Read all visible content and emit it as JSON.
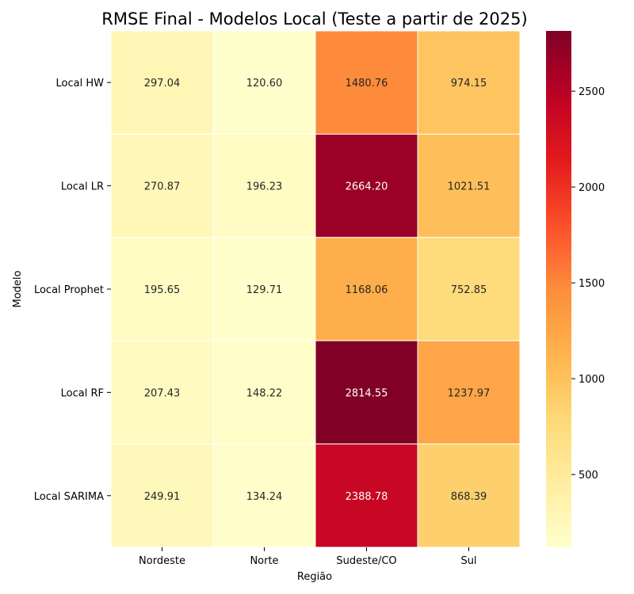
{
  "chart_data": {
    "type": "heatmap",
    "title": "RMSE Final - Modelos Local (Teste a partir de 2025)",
    "xlabel": "Região",
    "ylabel": "Modelo",
    "columns": [
      "Nordeste",
      "Norte",
      "Sudeste/CO",
      "Sul"
    ],
    "rows": [
      "Local HW",
      "Local LR",
      "Local Prophet",
      "Local RF",
      "Local SARIMA"
    ],
    "values": [
      [
        297.04,
        120.6,
        1480.76,
        974.15
      ],
      [
        270.87,
        196.23,
        2664.2,
        1021.51
      ],
      [
        195.65,
        129.71,
        1168.06,
        752.85
      ],
      [
        207.43,
        148.22,
        2814.55,
        1237.97
      ],
      [
        249.91,
        134.24,
        2388.78,
        868.39
      ]
    ],
    "value_labels": [
      [
        "297.04",
        "120.60",
        "1480.76",
        "974.15"
      ],
      [
        "270.87",
        "196.23",
        "2664.20",
        "1021.51"
      ],
      [
        "195.65",
        "129.71",
        "1168.06",
        "752.85"
      ],
      [
        "207.43",
        "148.22",
        "2814.55",
        "1237.97"
      ],
      [
        "249.91",
        "134.24",
        "2388.78",
        "868.39"
      ]
    ],
    "colormap": "YlOrRd",
    "color_range": [
      120.6,
      2814.55
    ],
    "colorbar_ticks": [
      500,
      1000,
      1500,
      2000,
      2500
    ],
    "colorbar_tick_labels": [
      "500",
      "1000",
      "1500",
      "2000",
      "2500"
    ],
    "grid": false,
    "cell_border_color": "#ffffff"
  }
}
